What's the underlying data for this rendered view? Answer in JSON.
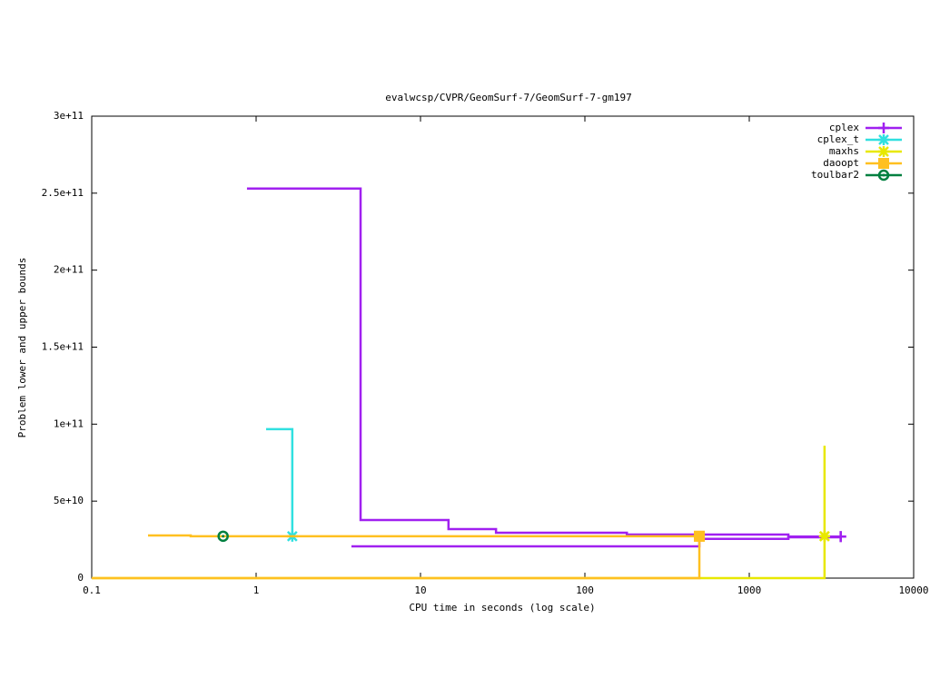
{
  "chart_data": {
    "type": "step",
    "title": "evalwcsp/CVPR/GeomSurf-7/GeomSurf-7-gm197",
    "x_label": "CPU time in seconds (log scale)",
    "y_label": "Problem lower and upper bounds",
    "x_log": true,
    "xlim": [
      0.1,
      10000
    ],
    "xticks": [
      0.1,
      1,
      10,
      100,
      1000,
      10000
    ],
    "ylim": [
      0,
      300000000000
    ],
    "yticks": [
      0,
      {
        "value": 50000000000,
        "label": "5e+10"
      },
      {
        "value": 100000000000,
        "label": "1e+11"
      },
      {
        "value": 150000000000,
        "label": "1.5e+11"
      },
      {
        "value": 200000000000,
        "label": "2e+11"
      },
      {
        "value": 250000000000,
        "label": "2.5e+11"
      },
      {
        "value": 300000000000,
        "label": "3e+11"
      }
    ],
    "legend": "top-right",
    "series": [
      {
        "name": "cplex",
        "color": "#a020f0",
        "point_type": "plus",
        "lines": [
          {
            "x": [
              0.88,
              4.32,
              14.8,
              28.8,
              180,
              1730,
              3600
            ],
            "values": [
              253000000000,
              37700000000,
              31800000000,
              29500000000,
              28300000000,
              27000000000,
              27000000000
            ]
          },
          {
            "x": [
              3.8,
              497,
              1730,
              3600
            ],
            "values": [
              20600000000,
              25500000000,
              26500000000,
              27000000000
            ]
          }
        ]
      },
      {
        "name": "cplex_t",
        "color": "#30e0e0",
        "point_type": "star",
        "lines": [
          {
            "x": [
              1.15,
              1.66
            ],
            "values": [
              96700000000,
              27200000000
            ]
          }
        ]
      },
      {
        "name": "maxhs",
        "color": "#e8e800",
        "point_type": "star",
        "lines": [
          {
            "x": [
              0.1,
              2870
            ],
            "values": [
              0,
              27200000000
            ]
          },
          {
            "x": [
              2870,
              2870
            ],
            "values": [
              86000000000,
              27200000000
            ]
          }
        ]
      },
      {
        "name": "daoopt",
        "color": "#ffc020",
        "point_type": "square",
        "lines": [
          {
            "x": [
              0.1,
              497
            ],
            "values": [
              0,
              27200000000
            ]
          },
          {
            "x": [
              0.22,
              0.4,
              497
            ],
            "values": [
              27700000000,
              27200000000,
              27200000000
            ]
          }
        ]
      },
      {
        "name": "toulbar2",
        "color": "#008040",
        "point_type": "circle",
        "lines": [
          {
            "x": [
              0.63
            ],
            "values": [
              27200000000
            ]
          }
        ]
      }
    ]
  }
}
